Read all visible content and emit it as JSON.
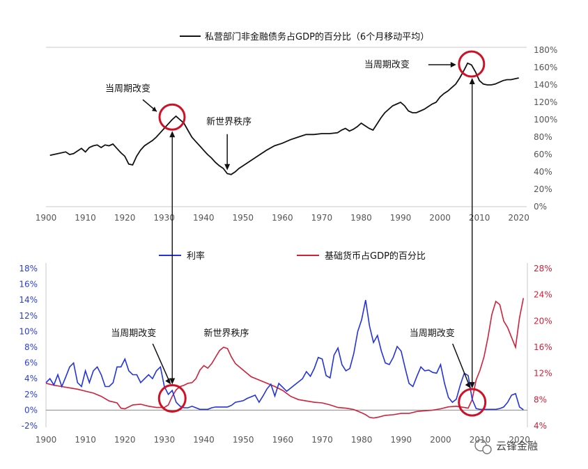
{
  "chart_data": [
    {
      "type": "line",
      "title": "",
      "legend": [
        "私营部门非金融债务占GDP的百分比（6个月移动平均）"
      ],
      "legend_placement": "top-center",
      "xlim": [
        1900,
        2022
      ],
      "ylim": [
        0,
        180
      ],
      "x_ticks": [
        "1900",
        "1910",
        "1920",
        "1930",
        "1940",
        "1950",
        "1960",
        "1970",
        "1980",
        "1990",
        "2000",
        "2010",
        "2020"
      ],
      "y_ticks": [
        "0%",
        "20%",
        "40%",
        "60%",
        "80%",
        "100%",
        "120%",
        "140%",
        "160%",
        "180%"
      ],
      "y_axis_side": "right",
      "grid": false,
      "series": [
        {
          "name": "私营部门非金融债务占GDP的百分比（6个月移动平均）",
          "color": "#111111",
          "x": [
            1901,
            1903,
            1905,
            1906,
            1907,
            1908,
            1909,
            1910,
            1911,
            1912,
            1913,
            1914,
            1915,
            1916,
            1917,
            1918,
            1919,
            1920,
            1921,
            1922,
            1923,
            1924,
            1925,
            1926,
            1927,
            1928,
            1929,
            1930,
            1931,
            1932,
            1933,
            1934,
            1935,
            1936,
            1937,
            1938,
            1939,
            1940,
            1941,
            1942,
            1943,
            1944,
            1945,
            1946,
            1947,
            1948,
            1949,
            1950,
            1952,
            1954,
            1956,
            1958,
            1960,
            1962,
            1964,
            1966,
            1968,
            1970,
            1972,
            1974,
            1975,
            1976,
            1977,
            1978,
            1979,
            1980,
            1981,
            1982,
            1983,
            1984,
            1985,
            1986,
            1987,
            1988,
            1989,
            1990,
            1991,
            1992,
            1993,
            1994,
            1995,
            1996,
            1997,
            1998,
            1999,
            2000,
            2001,
            2002,
            2003,
            2004,
            2005,
            2006,
            2007,
            2008,
            2009,
            2010,
            2011,
            2012,
            2013,
            2014,
            2015,
            2016,
            2017,
            2018,
            2019,
            2020
          ],
          "values": [
            59,
            61,
            63,
            60,
            61,
            64,
            67,
            63,
            68,
            70,
            71,
            68,
            71,
            70,
            72,
            67,
            62,
            58,
            49,
            48,
            58,
            65,
            70,
            73,
            76,
            80,
            85,
            90,
            95,
            100,
            104,
            100,
            96,
            88,
            80,
            75,
            70,
            65,
            60,
            56,
            51,
            47,
            44,
            38,
            37,
            40,
            44,
            47,
            53,
            59,
            65,
            70,
            73,
            77,
            80,
            83,
            83,
            84,
            84,
            85,
            88,
            90,
            87,
            89,
            92,
            96,
            93,
            90,
            88,
            95,
            102,
            108,
            112,
            116,
            118,
            120,
            116,
            110,
            108,
            108,
            110,
            112,
            115,
            118,
            120,
            126,
            130,
            133,
            137,
            141,
            148,
            156,
            165,
            163,
            155,
            145,
            141,
            140,
            140,
            141,
            143,
            145,
            146,
            146,
            147,
            148
          ]
        }
      ],
      "annotations": [
        {
          "text": "当周期改变",
          "x": 1932,
          "y": 103,
          "type": "circle"
        },
        {
          "text": "新世界秩序",
          "x": 1946,
          "y": 37,
          "type": "arrow-down"
        },
        {
          "text": "当周期改变",
          "x": 2008,
          "y": 164,
          "type": "circle"
        }
      ]
    },
    {
      "type": "line",
      "title": "",
      "legend": [
        "利率",
        "基础货币占GDP的百分比"
      ],
      "legend_placement": "top-center",
      "xlim": [
        1900,
        2022
      ],
      "x_ticks": [
        "1900",
        "1910",
        "1920",
        "1930",
        "1940",
        "1950",
        "1960",
        "1970",
        "1980",
        "1990",
        "2000",
        "2010",
        "2020"
      ],
      "left_axis": {
        "label": "",
        "ylim": [
          -2,
          18
        ],
        "ticks": [
          "-2%",
          "0%",
          "2%",
          "4%",
          "6%",
          "8%",
          "10%",
          "12%",
          "14%",
          "16%",
          "18%"
        ],
        "color": "#2b3fd6"
      },
      "right_axis": {
        "label": "",
        "ylim": [
          4,
          28
        ],
        "ticks": [
          "4%",
          "8%",
          "12%",
          "16%",
          "20%",
          "24%",
          "28%"
        ],
        "color": "#d0203a"
      },
      "grid": false,
      "series": [
        {
          "name": "利率",
          "axis": "left",
          "color": "#2233dd",
          "x": [
            1900,
            1901,
            1902,
            1903,
            1904,
            1905,
            1906,
            1907,
            1908,
            1909,
            1910,
            1911,
            1912,
            1913,
            1914,
            1915,
            1916,
            1917,
            1918,
            1919,
            1920,
            1921,
            1922,
            1923,
            1924,
            1925,
            1926,
            1927,
            1928,
            1929,
            1930,
            1931,
            1932,
            1933,
            1934,
            1935,
            1936,
            1937,
            1938,
            1939,
            1940,
            1941,
            1942,
            1943,
            1944,
            1945,
            1946,
            1947,
            1948,
            1949,
            1950,
            1951,
            1952,
            1953,
            1954,
            1955,
            1956,
            1957,
            1958,
            1959,
            1960,
            1961,
            1962,
            1963,
            1964,
            1965,
            1966,
            1967,
            1968,
            1969,
            1970,
            1971,
            1972,
            1973,
            1974,
            1975,
            1976,
            1977,
            1978,
            1979,
            1980,
            1981,
            1982,
            1983,
            1984,
            1985,
            1986,
            1987,
            1988,
            1989,
            1990,
            1991,
            1992,
            1993,
            1994,
            1995,
            1996,
            1997,
            1998,
            1999,
            2000,
            2001,
            2002,
            2003,
            2004,
            2005,
            2006,
            2007,
            2008,
            2009,
            2010,
            2011,
            2012,
            2013,
            2014,
            2015,
            2016,
            2017,
            2018,
            2019,
            2020,
            2021
          ],
          "values": [
            3.5,
            4.0,
            3.2,
            4.5,
            3.0,
            4.2,
            5.5,
            6.0,
            3.5,
            3.0,
            5.0,
            3.5,
            5.0,
            5.5,
            4.5,
            3.0,
            3.0,
            3.5,
            5.5,
            5.5,
            6.5,
            5.0,
            4.5,
            4.5,
            3.5,
            4.0,
            4.5,
            4.0,
            5.0,
            5.5,
            3.0,
            2.0,
            2.5,
            1.0,
            0.5,
            0.3,
            0.3,
            0.5,
            0.3,
            0.1,
            0.1,
            0.1,
            0.3,
            0.4,
            0.4,
            0.4,
            0.4,
            0.6,
            1.0,
            1.1,
            1.2,
            1.5,
            1.7,
            1.9,
            1.0,
            1.8,
            2.7,
            3.3,
            1.8,
            3.4,
            2.9,
            2.4,
            2.8,
            3.2,
            3.6,
            4.0,
            4.9,
            4.3,
            5.3,
            6.7,
            6.5,
            4.4,
            4.1,
            7.0,
            7.9,
            5.8,
            5.0,
            5.3,
            7.2,
            10.0,
            11.5,
            14.0,
            10.7,
            8.6,
            9.5,
            7.5,
            6.0,
            5.8,
            6.7,
            8.1,
            7.5,
            5.4,
            3.4,
            3.0,
            4.3,
            5.5,
            5.0,
            5.1,
            4.8,
            4.7,
            5.8,
            3.4,
            1.6,
            1.0,
            1.4,
            3.2,
            4.7,
            4.4,
            1.4,
            0.2,
            0.1,
            0.1,
            0.1,
            0.1,
            0.1,
            0.2,
            0.4,
            1.0,
            1.9,
            2.1,
            0.4,
            0.05
          ]
        },
        {
          "name": "基础货币占GDP的百分比",
          "axis": "right",
          "color": "#d0203a",
          "x": [
            1900,
            1902,
            1904,
            1906,
            1908,
            1910,
            1912,
            1914,
            1916,
            1918,
            1919,
            1920,
            1922,
            1924,
            1926,
            1928,
            1930,
            1931,
            1932,
            1933,
            1934,
            1935,
            1936,
            1937,
            1938,
            1939,
            1940,
            1941,
            1942,
            1943,
            1944,
            1945,
            1946,
            1947,
            1948,
            1950,
            1952,
            1954,
            1956,
            1958,
            1960,
            1962,
            1964,
            1966,
            1968,
            1970,
            1972,
            1974,
            1976,
            1978,
            1980,
            1981,
            1982,
            1983,
            1984,
            1986,
            1988,
            1990,
            1992,
            1994,
            1996,
            1998,
            2000,
            2002,
            2004,
            2006,
            2007,
            2008,
            2009,
            2010,
            2011,
            2012,
            2013,
            2014,
            2015,
            2016,
            2017,
            2018,
            2019,
            2020,
            2021
          ],
          "values": [
            10.5,
            10.2,
            10.0,
            9.8,
            9.6,
            9.3,
            9.0,
            8.5,
            7.8,
            7.5,
            6.7,
            6.6,
            7.2,
            7.3,
            7.0,
            6.8,
            6.8,
            7.2,
            8.5,
            9.5,
            10.0,
            10.2,
            10.5,
            10.6,
            11.2,
            12.5,
            13.2,
            12.8,
            13.5,
            14.5,
            15.5,
            16.0,
            15.8,
            14.5,
            13.5,
            12.5,
            11.5,
            11.0,
            10.5,
            10.0,
            9.4,
            8.5,
            8.0,
            7.8,
            7.6,
            7.5,
            7.2,
            6.8,
            6.7,
            6.5,
            6.0,
            5.7,
            5.3,
            5.2,
            5.3,
            5.6,
            5.7,
            5.9,
            5.9,
            6.2,
            6.3,
            6.4,
            6.6,
            6.9,
            7.0,
            6.8,
            6.7,
            8.0,
            11.0,
            12.5,
            14.5,
            17.5,
            21.0,
            23.0,
            22.5,
            20.0,
            19.0,
            17.5,
            16.0,
            20.5,
            23.5
          ]
        }
      ],
      "annotations": [
        {
          "text": "当周期改变",
          "x": 1932,
          "y": 1.5,
          "type": "circle"
        },
        {
          "text": "新世界秩序",
          "x": 1946,
          "y": 10.0,
          "type": "label"
        },
        {
          "text": "当周期改变",
          "x": 2008,
          "y": 1.0,
          "type": "circle"
        }
      ]
    }
  ],
  "connector_arrows": [
    {
      "x": 1932
    },
    {
      "x": 2008
    }
  ],
  "watermark": "云锋金融",
  "watermark_icon": "wechat-icon",
  "colors": {
    "black": "#111111",
    "blue": "#2233dd",
    "red": "#d0203a",
    "circle": "#d01025",
    "axis": "#c8c8c8"
  }
}
